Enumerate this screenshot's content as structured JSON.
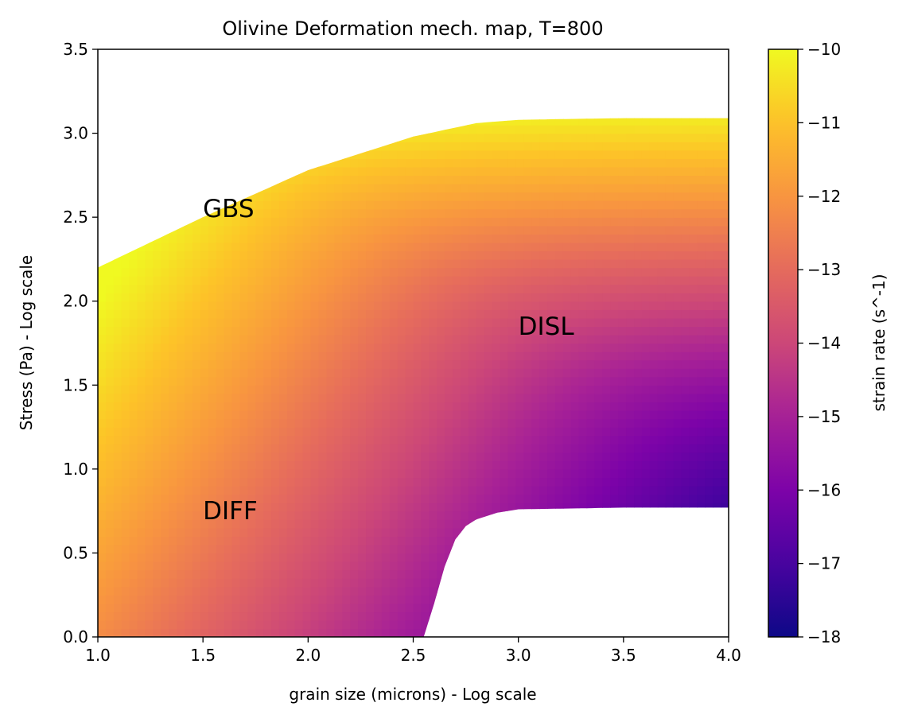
{
  "chart_data": {
    "type": "heatmap",
    "title": "Olivine Deformation mech. map, T=800",
    "xlabel": "grain size (microns) - Log scale",
    "ylabel": "Stress (Pa) - Log scale",
    "xlim": [
      1.0,
      4.0
    ],
    "ylim": [
      0.0,
      3.5
    ],
    "x_ticks": [
      "1.0",
      "1.5",
      "2.0",
      "2.5",
      "3.0",
      "3.5",
      "4.0"
    ],
    "y_ticks": [
      "0.0",
      "0.5",
      "1.0",
      "1.5",
      "2.0",
      "2.5",
      "3.0",
      "3.5"
    ],
    "colormap": "plasma",
    "colorbar": {
      "label": "strain rate (s^-1)",
      "range": [
        -18,
        -10
      ],
      "ticks": [
        "−18",
        "−17",
        "−16",
        "−15",
        "−14",
        "−13",
        "−12",
        "−11",
        "−10"
      ]
    },
    "upper_boundary": {
      "x": [
        1.0,
        1.5,
        2.0,
        2.5,
        2.8,
        3.0,
        3.5,
        4.0
      ],
      "y": [
        2.2,
        2.5,
        2.78,
        2.98,
        3.06,
        3.08,
        3.09,
        3.09
      ]
    },
    "lower_boundary": {
      "x": [
        2.55,
        2.6,
        2.65,
        2.7,
        2.75,
        2.8,
        2.9,
        3.0,
        3.5,
        4.0
      ],
      "y": [
        0.0,
        0.2,
        0.42,
        0.58,
        0.66,
        0.7,
        0.74,
        0.76,
        0.77,
        0.77
      ]
    },
    "annotations": [
      {
        "text": "GBS",
        "x": 1.5,
        "y": 2.5
      },
      {
        "text": "DISL",
        "x": 3.0,
        "y": 1.8
      },
      {
        "text": "DIFF",
        "x": 1.5,
        "y": 0.7
      }
    ]
  }
}
